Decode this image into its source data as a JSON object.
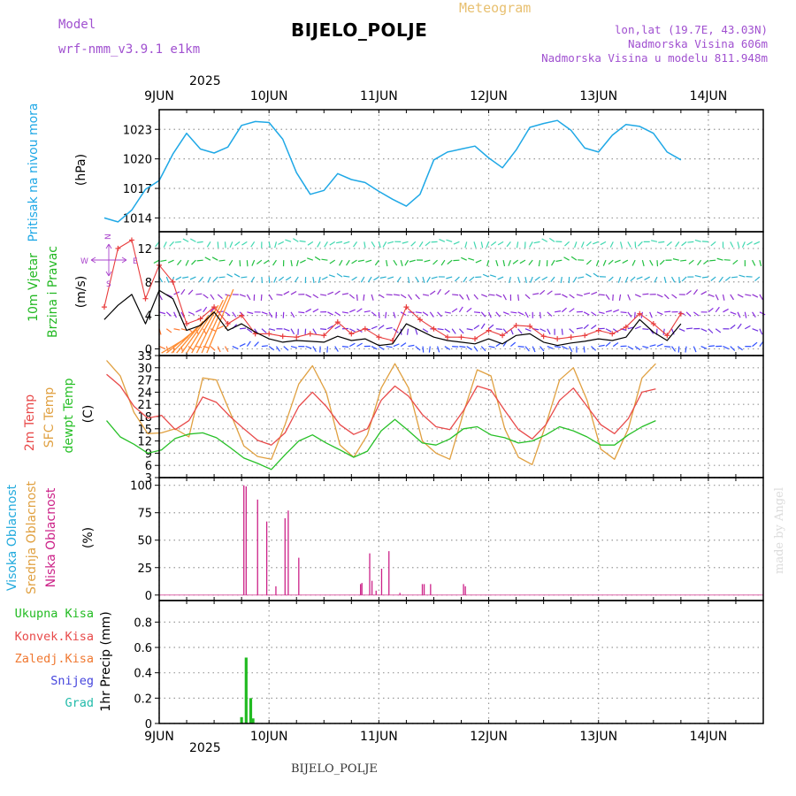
{
  "header": {
    "model_label": "Model",
    "model_name": "wrf-nmm_v3.9.1 e1km",
    "station": "BIJELO_POLJE",
    "product": "Meteogram",
    "coords": "lon,lat (19.7E, 43.03N)",
    "altitude": "Nadmorska Visina 606m",
    "model_altitude": "Nadmorska Visina u modelu 811.948m",
    "year_top": "2025",
    "year_bottom": "2025",
    "footer_station": "BIJELO_POLJE",
    "watermark": "made by Angel"
  },
  "colors": {
    "pressure": "#1fa8e6",
    "wind_label": "#22b822",
    "wind_speed": "#000000",
    "gust": "#e83c3c",
    "t2m": "#e84a4a",
    "tsfc": "#e0a040",
    "dewpt": "#28c028",
    "cloud_high": "#22aadd",
    "cloud_mid": "#e0a040",
    "cloud_low": "#cc2288",
    "precip": "#22bb22",
    "direction": "#aa44cc"
  },
  "chart_data": [
    {
      "type": "line",
      "panel": "pressure",
      "ylabel_title": "Pritisak na nivou mora",
      "ylabel_unit": "(hPa)",
      "yticks": [
        1014,
        1017,
        1020,
        1023
      ],
      "ylim": [
        1012.6,
        1025.0
      ],
      "x_start": "2025-06-08T12",
      "x_step_hours": 3,
      "grid": true,
      "series": [
        {
          "values": [
            1014.0,
            1013.6,
            1014.8,
            1016.9,
            1017.8,
            1020.5,
            1022.6,
            1021.0,
            1020.6,
            1021.2,
            1023.4,
            1023.8,
            1023.7,
            1022.0,
            1018.6,
            1016.4,
            1016.8,
            1018.5,
            1017.9,
            1017.6,
            1016.7,
            1015.9,
            1015.2,
            1016.4,
            1019.9,
            1020.7,
            1021.0,
            1021.3,
            1020.1,
            1019.1,
            1020.9,
            1023.2,
            1023.6,
            1023.9,
            1022.9,
            1021.1,
            1020.7,
            1022.4,
            1023.5,
            1023.3,
            1022.6,
            1020.7,
            1019.9
          ]
        }
      ]
    },
    {
      "type": "line",
      "panel": "wind",
      "ylabel_title_1": "10m Vjetar",
      "ylabel_title_2": "Brzina i Pravac",
      "ylabel_unit": "(m/s)",
      "compass": {
        "n": "N",
        "e": "E",
        "w": "W",
        "s": "S"
      },
      "yticks": [
        0,
        4,
        8,
        12
      ],
      "ylim": [
        -0.8,
        14.0
      ],
      "x_start": "2025-06-08T12",
      "x_step_hours": 3,
      "grid": true,
      "series": [
        {
          "name": "speed",
          "values": [
            3.5,
            5.2,
            6.5,
            3.0,
            7.0,
            6.0,
            2.2,
            2.8,
            4.4,
            2.2,
            3.0,
            2.0,
            1.2,
            0.8,
            1.0,
            0.9,
            0.8,
            1.5,
            1.0,
            1.2,
            0.4,
            0.6,
            3.0,
            2.2,
            1.4,
            1.0,
            0.8,
            0.6,
            1.2,
            0.6,
            1.6,
            1.8,
            0.8,
            0.4,
            0.7,
            0.9,
            1.2,
            1.0,
            1.4,
            3.5,
            2.0,
            1.0,
            3.0
          ]
        },
        {
          "name": "gust",
          "values": [
            5.0,
            12.0,
            13.0,
            6.0,
            10.0,
            8.0,
            3.0,
            3.6,
            5.0,
            3.0,
            4.0,
            1.8,
            1.8,
            1.5,
            1.4,
            1.8,
            1.6,
            3.2,
            1.8,
            2.4,
            1.4,
            1.0,
            5.0,
            3.5,
            2.4,
            1.4,
            1.4,
            1.2,
            2.2,
            1.6,
            2.8,
            2.7,
            1.5,
            1.2,
            1.4,
            1.6,
            2.2,
            1.8,
            2.6,
            4.2,
            3.0,
            1.6,
            4.2
          ]
        }
      ]
    },
    {
      "type": "line",
      "panel": "temperature",
      "ylabel_t2m": "2m Temp",
      "ylabel_tsfc": "SFC Temp",
      "ylabel_dew": "dewpt Temp",
      "ylabel_unit": "(C)",
      "yticks": [
        3,
        6,
        9,
        12,
        15,
        18,
        21,
        24,
        27,
        30,
        33
      ],
      "ylim": [
        3,
        33
      ],
      "x_start": "2025-06-08T12",
      "x_step_hours": 3,
      "grid": true,
      "series": [
        {
          "name": "t2m",
          "values": [
            28.4,
            25.5,
            20.5,
            17.6,
            18.3,
            14.8,
            17.0,
            22.8,
            21.5,
            18.0,
            15.0,
            12.2,
            11.0,
            14.0,
            20.5,
            24.0,
            20.5,
            16.0,
            13.6,
            15.0,
            22.0,
            25.5,
            23.0,
            18.5,
            15.5,
            14.8,
            19.5,
            25.5,
            24.5,
            19.5,
            14.8,
            12.5,
            16.0,
            22.0,
            25.0,
            20.5,
            16.0,
            13.8,
            17.5,
            24.0,
            24.8
          ]
        },
        {
          "name": "tsfc",
          "values": [
            31.8,
            28.0,
            19.0,
            13.8,
            14.0,
            15.0,
            13.0,
            27.5,
            27.0,
            19.0,
            10.8,
            8.2,
            7.5,
            16.0,
            26.0,
            30.5,
            24.0,
            11.0,
            8.0,
            13.5,
            25.0,
            31.0,
            25.0,
            12.0,
            9.0,
            7.5,
            19.0,
            29.5,
            28.0,
            15.0,
            8.0,
            6.2,
            16.0,
            27.0,
            30.0,
            22.0,
            10.0,
            7.5,
            15.0,
            27.5,
            31.0
          ]
        },
        {
          "name": "dewpt",
          "values": [
            17.0,
            13.0,
            11.2,
            9.0,
            9.8,
            12.6,
            13.7,
            14.0,
            12.8,
            10.4,
            7.8,
            6.5,
            5.0,
            8.6,
            12.0,
            13.5,
            11.5,
            9.8,
            8.0,
            9.5,
            14.5,
            17.3,
            14.5,
            11.5,
            11.0,
            12.5,
            15.0,
            15.5,
            13.5,
            12.8,
            11.5,
            12.0,
            13.5,
            15.5,
            14.5,
            13.0,
            11.0,
            11.0,
            13.5,
            15.5,
            17.0
          ]
        }
      ]
    },
    {
      "type": "bar",
      "panel": "cloud",
      "ylabel_high": "Visoka Oblacnost",
      "ylabel_mid": "Srednja Oblacnost",
      "ylabel_low": "Niska Oblacnost",
      "ylabel_unit": "(%)",
      "yticks": [
        0,
        25,
        50,
        75,
        100
      ],
      "ylim": [
        -5,
        107
      ],
      "x_unit": "hours since 2025-06-08T12",
      "grid": true,
      "series": [
        {
          "name": "low",
          "x": [
            18.5,
            19.0,
            21.5,
            23.5,
            25.5,
            27.5,
            28.2,
            30.5,
            44.0,
            44.3,
            46.0,
            46.5,
            47.4,
            48.6,
            50.2,
            52.6,
            57.5,
            57.9,
            59.3,
            66.5,
            66.9
          ],
          "values": [
            100,
            99,
            87,
            67,
            8,
            70,
            77,
            34,
            10,
            11,
            38,
            13,
            4,
            24,
            40,
            2,
            10,
            10,
            10,
            10,
            8
          ]
        }
      ]
    },
    {
      "type": "bar",
      "panel": "precip",
      "ylabel_total": "Ukupna Kisa",
      "ylabel_conv": "Konvek.Kisa",
      "ylabel_frz": "Zaledj.Kisa",
      "ylabel_snow": "Snijeg",
      "ylabel_grad": "Grad",
      "ylabel_unit": "1hr Precip (mm)",
      "yticks": [
        0,
        0.2,
        0.4,
        0.6,
        0.8
      ],
      "ylim": [
        0,
        0.97
      ],
      "x_unit": "hours since 2025-06-08T12",
      "grid": true,
      "series": [
        {
          "name": "total",
          "x": [
            18.0,
            19.0,
            20.0,
            20.5
          ],
          "values": [
            0.05,
            0.52,
            0.2,
            0.04
          ]
        }
      ]
    }
  ],
  "x_axis": {
    "labels": [
      "9JUN",
      "10JUN",
      "11JUN",
      "12JUN",
      "13JUN",
      "14JUN"
    ],
    "label_hours": [
      12,
      36,
      60,
      84,
      108,
      132
    ]
  }
}
